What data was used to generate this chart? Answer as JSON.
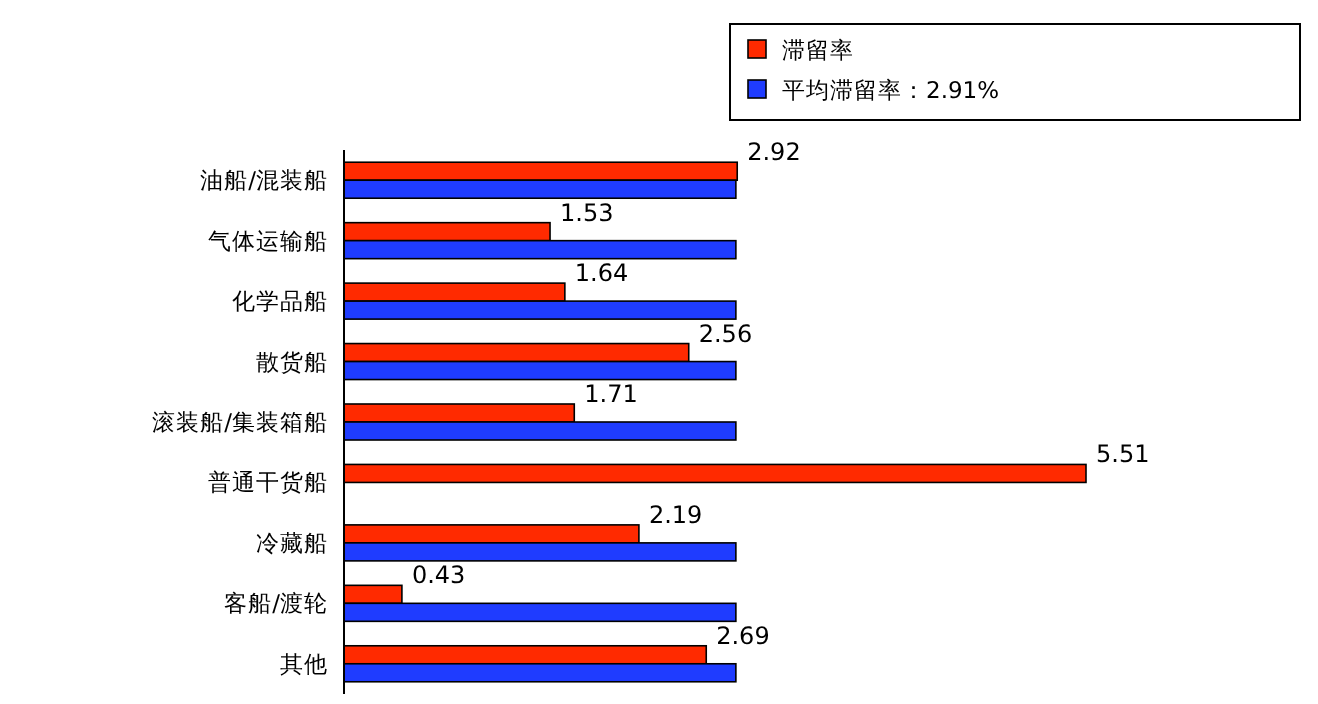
{
  "chart_data": {
    "type": "bar",
    "orientation": "horizontal",
    "categories": [
      "油船/混装船",
      "气体运输船",
      "化学品船",
      "散货船",
      "滚装船/集装箱船",
      "普通干货船",
      "冷藏船",
      "客船/渡轮",
      "其他"
    ],
    "series": [
      {
        "name": "滞留率",
        "color": "#ff2a00",
        "values": [
          2.92,
          1.53,
          1.64,
          2.56,
          1.71,
          5.51,
          2.19,
          0.43,
          2.69
        ],
        "value_labels": [
          "2.92",
          "1.53",
          "1.64",
          "2.56",
          "1.71",
          "5.51",
          "2.19",
          "0.43",
          "2.69"
        ]
      },
      {
        "name": "平均滞留率：2.91%",
        "color": "#1f3cff",
        "values": [
          2.91,
          2.91,
          2.91,
          2.91,
          2.91,
          null,
          2.91,
          2.91,
          2.91
        ]
      }
    ],
    "legend": "top right"
  }
}
